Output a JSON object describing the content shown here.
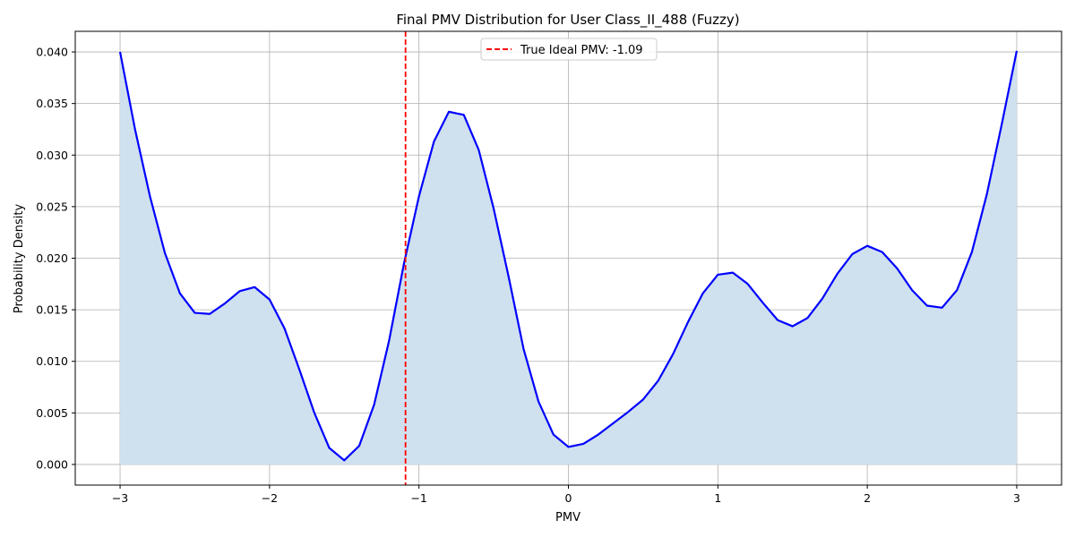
{
  "chart_data": {
    "type": "area",
    "title": "Final PMV Distribution for User Class_II_488 (Fuzzy)",
    "xlabel": "PMV",
    "ylabel": "Probability Density",
    "xlim": [
      -3.3,
      3.3
    ],
    "ylim": [
      -0.002,
      0.042
    ],
    "xticks": [
      -3,
      -2,
      -1,
      0,
      1,
      2,
      3
    ],
    "xtick_labels": [
      "−3",
      "−2",
      "−1",
      "0",
      "1",
      "2",
      "3"
    ],
    "yticks": [
      0.0,
      0.005,
      0.01,
      0.015,
      0.02,
      0.025,
      0.03,
      0.035,
      0.04
    ],
    "ytick_labels": [
      "0.000",
      "0.005",
      "0.010",
      "0.015",
      "0.020",
      "0.025",
      "0.030",
      "0.035",
      "0.040"
    ],
    "grid": true,
    "legend_position": "top-center",
    "series": [
      {
        "name": "",
        "color": "#0000ff",
        "fill_color": "#cfe0ee",
        "x": [
          -3.0,
          -2.9,
          -2.8,
          -2.7,
          -2.6,
          -2.5,
          -2.4,
          -2.3,
          -2.2,
          -2.1,
          -2.0,
          -1.9,
          -1.8,
          -1.7,
          -1.6,
          -1.5,
          -1.4,
          -1.3,
          -1.2,
          -1.1,
          -1.0,
          -0.9,
          -0.8,
          -0.7,
          -0.6,
          -0.5,
          -0.4,
          -0.3,
          -0.2,
          -0.1,
          0.0,
          0.1,
          0.2,
          0.3,
          0.4,
          0.5,
          0.6,
          0.7,
          0.8,
          0.9,
          1.0,
          1.1,
          1.2,
          1.3,
          1.4,
          1.5,
          1.6,
          1.7,
          1.8,
          1.9,
          2.0,
          2.1,
          2.2,
          2.3,
          2.4,
          2.5,
          2.6,
          2.7,
          2.8,
          2.9,
          3.0
        ],
        "y": [
          0.04,
          0.0325,
          0.026,
          0.0205,
          0.0166,
          0.0147,
          0.0146,
          0.0156,
          0.0168,
          0.0172,
          0.016,
          0.0132,
          0.0092,
          0.005,
          0.0016,
          0.0004,
          0.0018,
          0.0058,
          0.012,
          0.0195,
          0.026,
          0.0313,
          0.0342,
          0.0339,
          0.0305,
          0.0248,
          0.0182,
          0.0112,
          0.0061,
          0.0029,
          0.0017,
          0.002,
          0.0029,
          0.004,
          0.0051,
          0.0063,
          0.0081,
          0.0107,
          0.0138,
          0.0166,
          0.0184,
          0.0186,
          0.0175,
          0.0157,
          0.014,
          0.0134,
          0.0142,
          0.0161,
          0.0185,
          0.0204,
          0.0212,
          0.0206,
          0.019,
          0.0169,
          0.0154,
          0.0152,
          0.0169,
          0.0206,
          0.0262,
          0.033,
          0.0401
        ]
      }
    ],
    "vline": {
      "x": -1.09,
      "label": "True Ideal PMV: -1.09",
      "color": "#ff0000",
      "style": "dashed"
    }
  }
}
